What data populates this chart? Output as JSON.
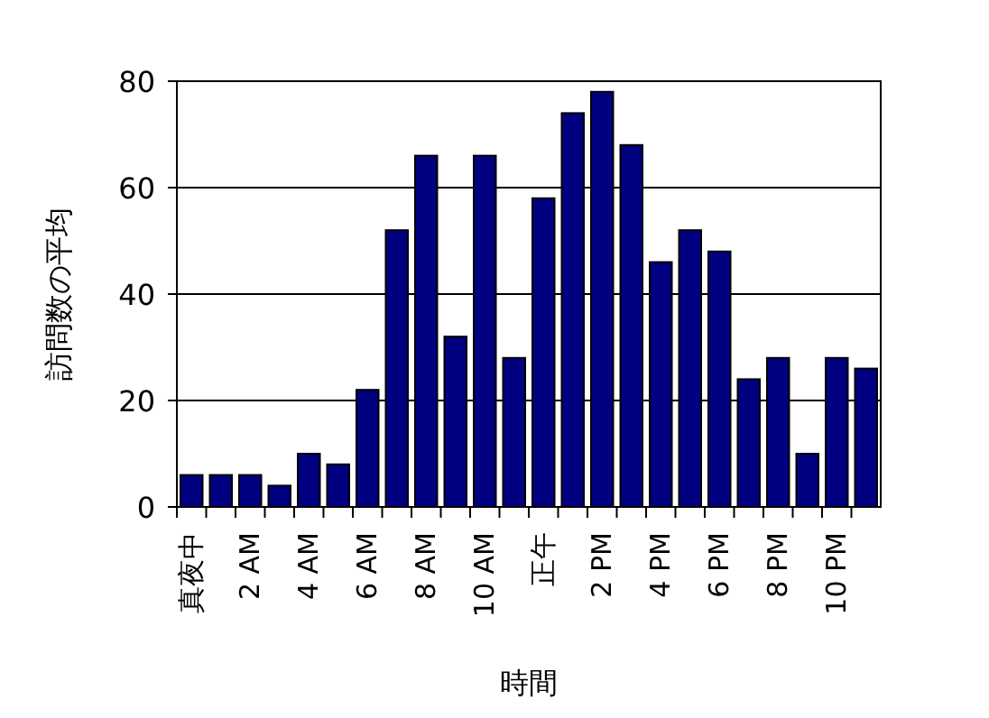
{
  "chart_data": {
    "type": "bar",
    "xlabel": "時間",
    "ylabel": "訪問数の平均",
    "categories": [
      "真夜中",
      null,
      "2 AM",
      null,
      "4 AM",
      null,
      "6 AM",
      null,
      "8 AM",
      null,
      "10 AM",
      null,
      "正午",
      null,
      "2 PM",
      null,
      "4 PM",
      null,
      "6 PM",
      null,
      "8 PM",
      null,
      "10 PM",
      null
    ],
    "values": [
      6,
      6,
      6,
      4,
      10,
      8,
      22,
      52,
      66,
      32,
      66,
      28,
      58,
      74,
      78,
      68,
      46,
      52,
      48,
      24,
      28,
      10,
      28,
      26
    ],
    "color": "#000080",
    "ylim": [
      0,
      80
    ],
    "yticks": [
      0,
      20,
      40,
      60,
      80
    ],
    "grid": "y"
  }
}
